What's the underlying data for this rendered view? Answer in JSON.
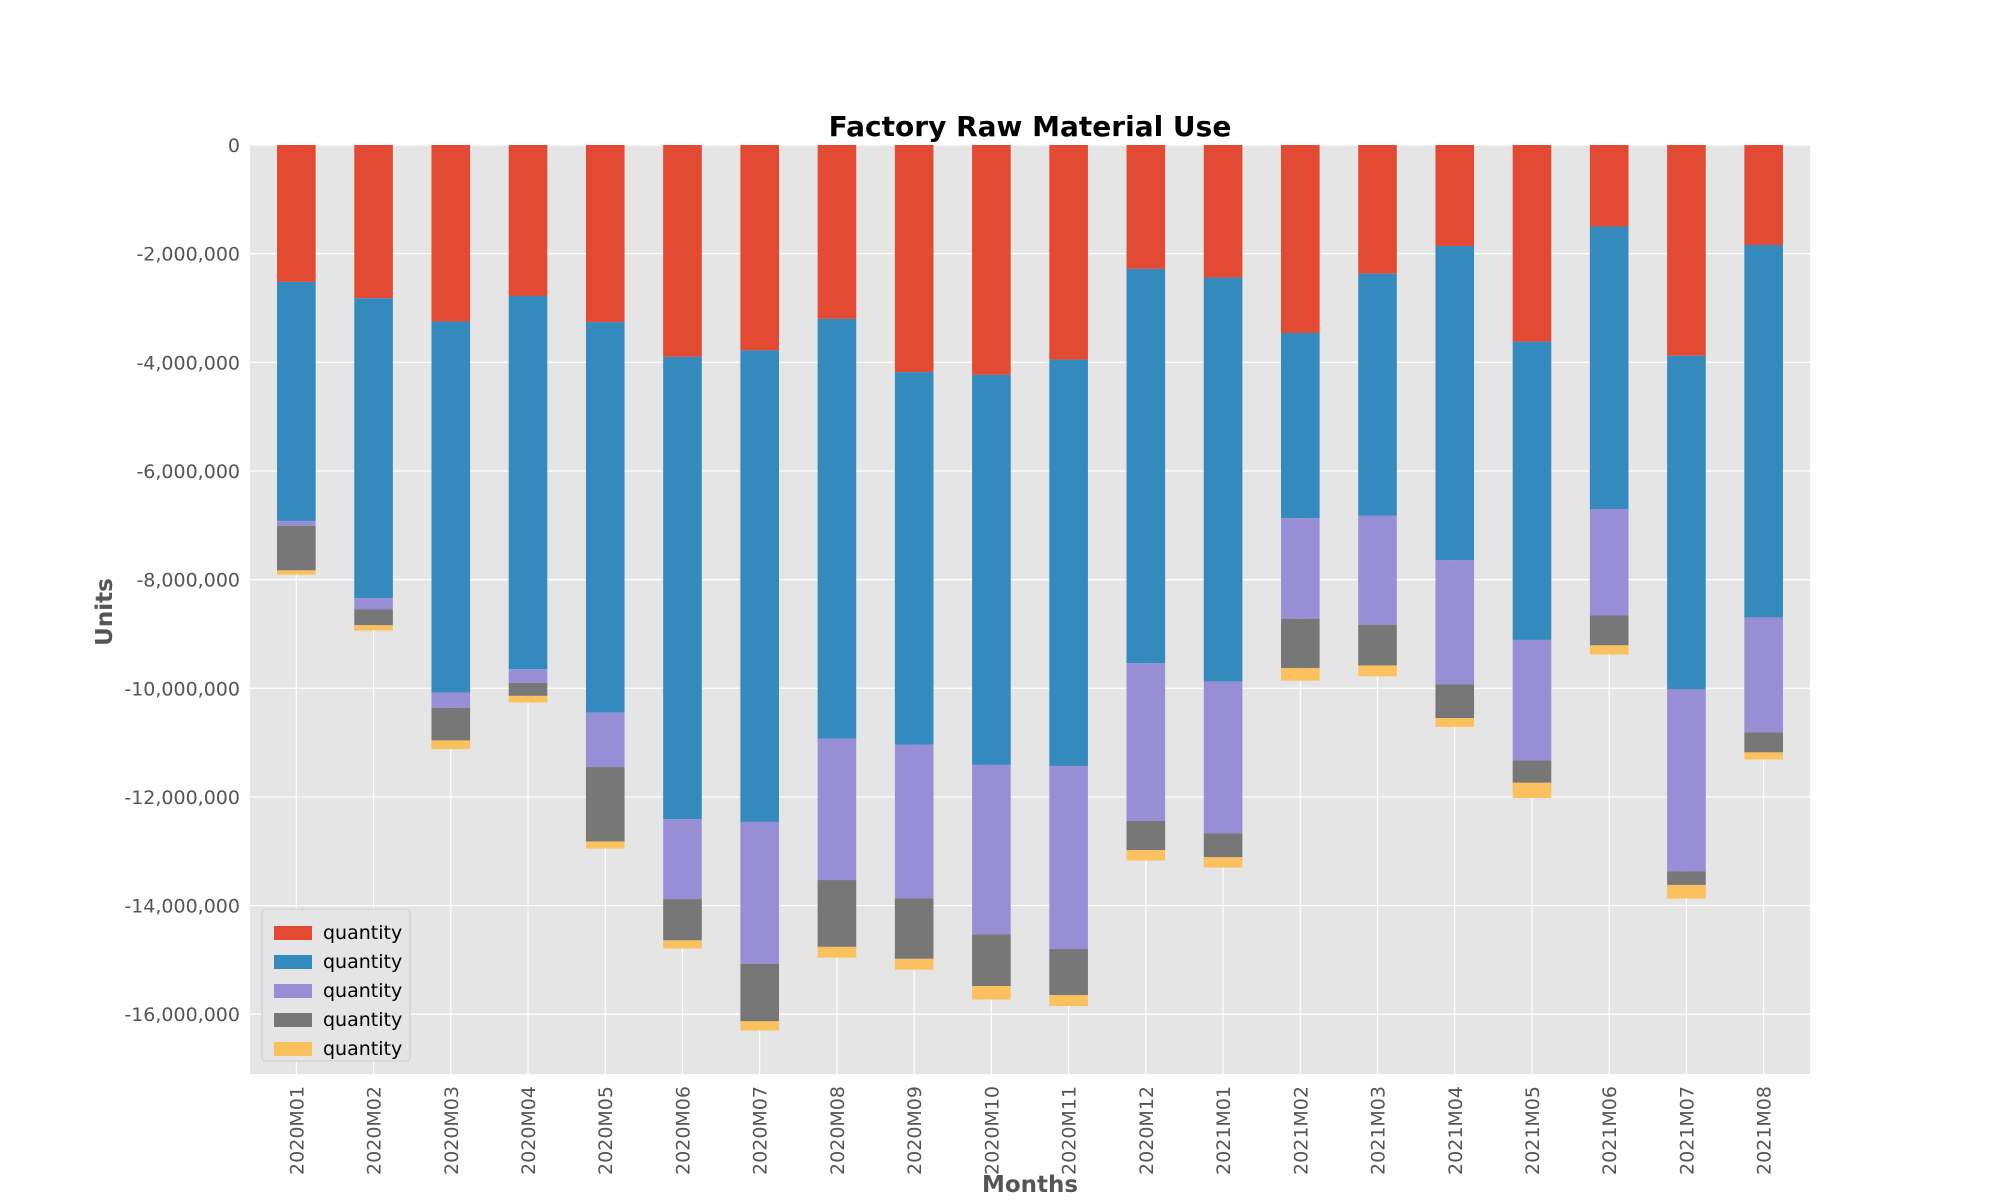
{
  "chart_data": {
    "type": "bar",
    "stacked": true,
    "title": "Factory Raw Material Use",
    "xlabel": "Months",
    "ylabel": "Units",
    "ylim": [
      -17100000,
      0
    ],
    "yticks": [
      0,
      -2000000,
      -4000000,
      -6000000,
      -8000000,
      -10000000,
      -12000000,
      -14000000,
      -16000000
    ],
    "ytick_labels": [
      "0",
      "-2,000,000",
      "-4,000,000",
      "-6,000,000",
      "-8,000,000",
      "-10,000,000",
      "-12,000,000",
      "-14,000,000",
      "-16,000,000"
    ],
    "grid": true,
    "legend_position": "lower-left",
    "categories": [
      "2020M01",
      "2020M02",
      "2020M03",
      "2020M04",
      "2020M05",
      "2020M06",
      "2020M07",
      "2020M08",
      "2020M09",
      "2020M10",
      "2020M11",
      "2020M12",
      "2021M01",
      "2021M02",
      "2021M03",
      "2021M04",
      "2021M05",
      "2021M06",
      "2021M07",
      "2021M08"
    ],
    "series": [
      {
        "name": "quantity",
        "color": "#E24A33",
        "values": [
          -2520000,
          -2820000,
          -3250000,
          -2780000,
          -3260000,
          -3900000,
          -3780000,
          -3200000,
          -4180000,
          -4230000,
          -3950000,
          -2280000,
          -2440000,
          -3460000,
          -2370000,
          -1860000,
          -3620000,
          -1500000,
          -3880000,
          -1840000
        ]
      },
      {
        "name": "quantity",
        "color": "#348ABD",
        "values": [
          -4400000,
          -5520000,
          -6830000,
          -6870000,
          -7190000,
          -8510000,
          -8680000,
          -7730000,
          -6860000,
          -7180000,
          -7480000,
          -7260000,
          -7440000,
          -3410000,
          -4450000,
          -5780000,
          -5490000,
          -5200000,
          -6140000,
          -6860000
        ]
      },
      {
        "name": "quantity",
        "color": "#988ED5",
        "values": [
          -90000,
          -210000,
          -280000,
          -250000,
          -1000000,
          -1470000,
          -2610000,
          -2600000,
          -2830000,
          -3120000,
          -3370000,
          -2900000,
          -2790000,
          -1850000,
          -2010000,
          -2290000,
          -2220000,
          -1960000,
          -3350000,
          -2110000
        ]
      },
      {
        "name": "quantity",
        "color": "#777777",
        "values": [
          -820000,
          -290000,
          -600000,
          -240000,
          -1370000,
          -760000,
          -1060000,
          -1230000,
          -1110000,
          -950000,
          -850000,
          -540000,
          -440000,
          -910000,
          -750000,
          -620000,
          -410000,
          -550000,
          -250000,
          -370000
        ]
      },
      {
        "name": "quantity",
        "color": "#FBC15E",
        "values": [
          -80000,
          -100000,
          -160000,
          -120000,
          -130000,
          -150000,
          -170000,
          -200000,
          -200000,
          -250000,
          -200000,
          -190000,
          -190000,
          -230000,
          -200000,
          -160000,
          -280000,
          -170000,
          -250000,
          -130000
        ]
      }
    ]
  }
}
